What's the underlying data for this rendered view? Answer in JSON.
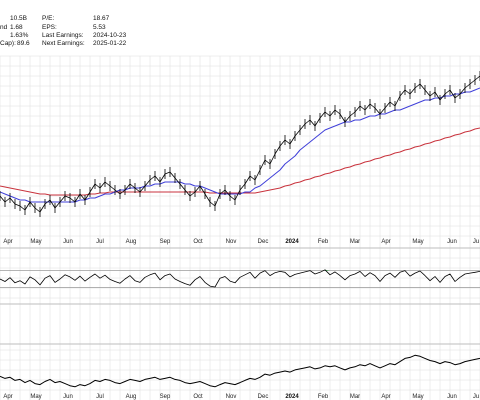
{
  "info_panel": {
    "left": [
      {
        "label": "",
        "value": "10.5B"
      },
      {
        "label": "nd",
        "value": "1.68"
      },
      {
        "label": "",
        "value": "1.63%"
      },
      {
        "label": "Cap):",
        "value": "89.6"
      }
    ],
    "right": [
      {
        "label": "P/E:",
        "value": "18.67"
      },
      {
        "label": "EPS:",
        "value": "5.53"
      },
      {
        "label": "Last Earnings:",
        "value": "2024-10-23"
      },
      {
        "label": "Next Earnings:",
        "value": "2025-01-22"
      }
    ]
  },
  "colors": {
    "price": "#000000",
    "ma_short": "#3f3fd9",
    "ma_long": "#c8323c",
    "grid": "#dedede",
    "divider": "#bdbdbd",
    "rsi_fill": "#35b24a"
  },
  "chart_data": [
    {
      "type": "line",
      "panel": "price",
      "x_tick_labels": [
        "Apr",
        "May",
        "Jun",
        "Jul",
        "Aug",
        "Sep",
        "Oct",
        "Nov",
        "Dec",
        "2024",
        "Feb",
        "Mar",
        "Apr",
        "May",
        "Jun",
        "Ju"
      ],
      "x": [
        0,
        5,
        10,
        15,
        20,
        25,
        30,
        35,
        40,
        45,
        50,
        55,
        60,
        65,
        70,
        75,
        80,
        85,
        90,
        95,
        100,
        105,
        110,
        115,
        120,
        125,
        130,
        135,
        140,
        145,
        150,
        155,
        160,
        165,
        170,
        175,
        180,
        185,
        190,
        195,
        200,
        205,
        210,
        215,
        220,
        225,
        230,
        235,
        240,
        245,
        250,
        255,
        260,
        265,
        270,
        275,
        280,
        285,
        290,
        295,
        300,
        305,
        310,
        315,
        320,
        325,
        330,
        335,
        340,
        345,
        350,
        355,
        360,
        365,
        370,
        375,
        380,
        385,
        390,
        395,
        400,
        405,
        410,
        415,
        420,
        425,
        430,
        435,
        440,
        445,
        450,
        455,
        460,
        465,
        470,
        475,
        480
      ],
      "series": [
        {
          "role": "price",
          "values": [
            50,
            47,
            49,
            46,
            45,
            43,
            47,
            44,
            42,
            46,
            48,
            44,
            47,
            50,
            49,
            47,
            51,
            48,
            52,
            56,
            54,
            57,
            55,
            53,
            51,
            53,
            56,
            54,
            52,
            55,
            58,
            60,
            57,
            61,
            62,
            59,
            56,
            53,
            50,
            52,
            55,
            51,
            47,
            45,
            51,
            53,
            50,
            48,
            53,
            56,
            60,
            58,
            63,
            68,
            66,
            71,
            75,
            78,
            76,
            80,
            83,
            86,
            88,
            85,
            89,
            92,
            90,
            93,
            91,
            87,
            90,
            92,
            95,
            93,
            96,
            94,
            91,
            94,
            97,
            95,
            100,
            103,
            101,
            104,
            106,
            103,
            100,
            102,
            98,
            101,
            103,
            99,
            101,
            104,
            106,
            108,
            110
          ]
        },
        {
          "role": "ma_short",
          "values": [
            52,
            51,
            50,
            49,
            48,
            48,
            47,
            47,
            47,
            47,
            47,
            47,
            47,
            47,
            47,
            47,
            48,
            48,
            49,
            49,
            50,
            51,
            51,
            52,
            53,
            53,
            54,
            54,
            54,
            55,
            55,
            56,
            56,
            57,
            57,
            57,
            57,
            56,
            56,
            55,
            55,
            54,
            53,
            52,
            51,
            51,
            51,
            51,
            51,
            52,
            52,
            54,
            55,
            57,
            59,
            61,
            63,
            66,
            68,
            70,
            73,
            75,
            77,
            79,
            81,
            83,
            84,
            85,
            86,
            87,
            87,
            88,
            88,
            89,
            90,
            90,
            91,
            91,
            92,
            93,
            93,
            94,
            95,
            96,
            97,
            98,
            98,
            99,
            99,
            100,
            100,
            101,
            101,
            102,
            102,
            103,
            104
          ]
        },
        {
          "role": "ma_long",
          "values": [
            55,
            54.5,
            54,
            53.5,
            53,
            52.5,
            52,
            51.5,
            51,
            51,
            50.5,
            50.5,
            50.5,
            50.5,
            50.5,
            50.5,
            50.5,
            50.5,
            51,
            51,
            51.5,
            51.5,
            52,
            52,
            52,
            52,
            52,
            52,
            52,
            52,
            52,
            52,
            52,
            52,
            52,
            52,
            52,
            52,
            52,
            52,
            52,
            52,
            51.5,
            51.5,
            51.5,
            51.5,
            51.5,
            51.5,
            51.5,
            51.5,
            51.5,
            51.5,
            52,
            52.5,
            53,
            53.5,
            54,
            55,
            55.5,
            56.5,
            57,
            58,
            58.5,
            59.5,
            60,
            61,
            61.5,
            62.5,
            63,
            64,
            64.5,
            65.5,
            66,
            67,
            67.5,
            68.5,
            69,
            70,
            70.5,
            71.5,
            72,
            73,
            73.5,
            74.5,
            75,
            76,
            76.5,
            77.5,
            78,
            79,
            79.5,
            80.5,
            81,
            82,
            82.5,
            83.5,
            84
          ]
        }
      ],
      "ylim": [
        30,
        120
      ]
    },
    {
      "type": "line",
      "panel": "rsi",
      "x": [
        0,
        5,
        10,
        15,
        20,
        25,
        30,
        35,
        40,
        45,
        50,
        55,
        60,
        65,
        70,
        75,
        80,
        85,
        90,
        95,
        100,
        105,
        110,
        115,
        120,
        125,
        130,
        135,
        140,
        145,
        150,
        155,
        160,
        165,
        170,
        175,
        180,
        185,
        190,
        195,
        200,
        205,
        210,
        215,
        220,
        225,
        230,
        235,
        240,
        245,
        250,
        255,
        260,
        265,
        270,
        275,
        280,
        285,
        290,
        295,
        300,
        305,
        310,
        315,
        320,
        325,
        330,
        335,
        340,
        345,
        350,
        355,
        360,
        365,
        370,
        375,
        380,
        385,
        390,
        395,
        400,
        405,
        410,
        415,
        420,
        425,
        430,
        435,
        440,
        445,
        450,
        455,
        460,
        465,
        470,
        475,
        480
      ],
      "series": [
        {
          "role": "rsi",
          "values": [
            50,
            44,
            53,
            41,
            46,
            38,
            55,
            48,
            36,
            52,
            58,
            42,
            50,
            60,
            55,
            47,
            57,
            45,
            54,
            62,
            52,
            59,
            49,
            44,
            40,
            50,
            58,
            46,
            42,
            54,
            60,
            64,
            48,
            58,
            62,
            50,
            44,
            39,
            35,
            48,
            56,
            42,
            33,
            31,
            52,
            56,
            45,
            41,
            54,
            60,
            66,
            52,
            64,
            70,
            58,
            65,
            68,
            66,
            55,
            61,
            64,
            67,
            70,
            62,
            66,
            72,
            60,
            67,
            58,
            48,
            58,
            62,
            68,
            56,
            65,
            58,
            44,
            58,
            64,
            54,
            66,
            70,
            57,
            64,
            69,
            58,
            46,
            56,
            42,
            56,
            62,
            44,
            54,
            62,
            64,
            66,
            68
          ]
        }
      ],
      "ylim": [
        0,
        100
      ],
      "reference_lines": [
        70,
        30
      ]
    },
    {
      "type": "line",
      "panel": "obv",
      "x": [
        0,
        5,
        10,
        15,
        20,
        25,
        30,
        35,
        40,
        45,
        50,
        55,
        60,
        65,
        70,
        75,
        80,
        85,
        90,
        95,
        100,
        105,
        110,
        115,
        120,
        125,
        130,
        135,
        140,
        145,
        150,
        155,
        160,
        165,
        170,
        175,
        180,
        185,
        190,
        195,
        200,
        205,
        210,
        215,
        220,
        225,
        230,
        235,
        240,
        245,
        250,
        255,
        260,
        265,
        270,
        275,
        280,
        285,
        290,
        295,
        300,
        305,
        310,
        315,
        320,
        325,
        330,
        335,
        340,
        345,
        350,
        355,
        360,
        365,
        370,
        375,
        380,
        385,
        390,
        395,
        400,
        405,
        410,
        415,
        420,
        425,
        430,
        435,
        440,
        445,
        450,
        455,
        460,
        465,
        470,
        475,
        480
      ],
      "series": [
        {
          "role": "obv",
          "values": [
            30,
            26,
            28,
            22,
            24,
            18,
            22,
            16,
            14,
            20,
            24,
            18,
            20,
            16,
            12,
            10,
            14,
            12,
            16,
            22,
            20,
            24,
            22,
            18,
            16,
            20,
            24,
            22,
            20,
            24,
            26,
            28,
            24,
            26,
            28,
            24,
            22,
            18,
            16,
            18,
            20,
            16,
            12,
            10,
            14,
            18,
            16,
            14,
            18,
            22,
            26,
            24,
            28,
            34,
            32,
            36,
            38,
            40,
            38,
            42,
            44,
            46,
            48,
            44,
            46,
            50,
            48,
            50,
            46,
            42,
            46,
            48,
            52,
            50,
            54,
            50,
            46,
            50,
            54,
            52,
            58,
            64,
            66,
            70,
            68,
            64,
            60,
            58,
            54,
            58,
            56,
            52,
            54,
            58,
            60,
            62,
            64
          ]
        }
      ],
      "ylim": [
        0,
        80
      ]
    }
  ]
}
